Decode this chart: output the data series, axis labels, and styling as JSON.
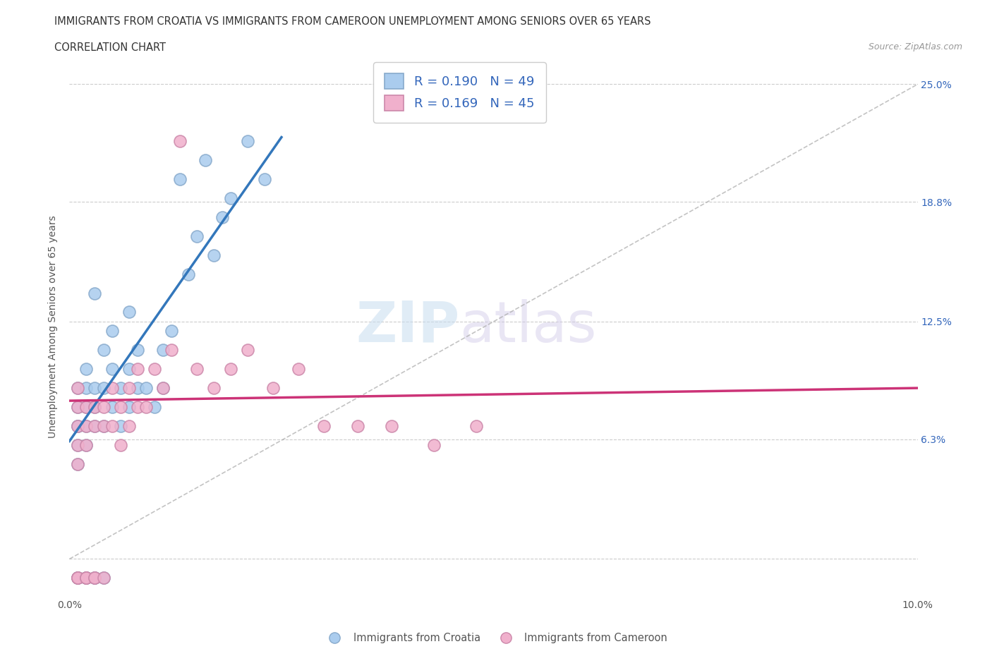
{
  "title_line1": "IMMIGRANTS FROM CROATIA VS IMMIGRANTS FROM CAMEROON UNEMPLOYMENT AMONG SENIORS OVER 65 YEARS",
  "title_line2": "CORRELATION CHART",
  "source_text": "Source: ZipAtlas.com",
  "ylabel": "Unemployment Among Seniors over 65 years",
  "watermark_zip": "ZIP",
  "watermark_atlas": "atlas",
  "xlim": [
    0.0,
    0.1
  ],
  "ylim": [
    -0.02,
    0.265
  ],
  "croatia_color": "#aaccee",
  "cameroon_color": "#f0b0cc",
  "croatia_edge": "#88aacc",
  "cameroon_edge": "#cc88aa",
  "trendline_croatia_color": "#3377bb",
  "trendline_cameroon_color": "#cc3377",
  "diagonal_color": "#aaaaaa",
  "legend_text_color": "#3366bb",
  "R_croatia": 0.19,
  "N_croatia": 49,
  "R_cameroon": 0.169,
  "N_cameroon": 45,
  "croatia_x": [
    0.001,
    0.001,
    0.001,
    0.001,
    0.001,
    0.001,
    0.001,
    0.001,
    0.002,
    0.002,
    0.002,
    0.002,
    0.002,
    0.002,
    0.002,
    0.003,
    0.003,
    0.003,
    0.003,
    0.003,
    0.003,
    0.004,
    0.004,
    0.004,
    0.004,
    0.005,
    0.005,
    0.005,
    0.006,
    0.006,
    0.007,
    0.007,
    0.007,
    0.008,
    0.008,
    0.009,
    0.01,
    0.011,
    0.011,
    0.012,
    0.013,
    0.014,
    0.015,
    0.016,
    0.017,
    0.018,
    0.019,
    0.021,
    0.023
  ],
  "croatia_y": [
    0.05,
    0.06,
    0.07,
    0.07,
    0.08,
    0.09,
    -0.01,
    -0.01,
    0.06,
    0.07,
    0.08,
    0.09,
    0.1,
    -0.01,
    -0.01,
    0.07,
    0.08,
    0.09,
    0.14,
    -0.01,
    -0.01,
    0.07,
    0.09,
    0.11,
    -0.01,
    0.08,
    0.1,
    0.12,
    0.07,
    0.09,
    0.08,
    0.1,
    0.13,
    0.09,
    0.11,
    0.09,
    0.08,
    0.09,
    0.11,
    0.12,
    0.2,
    0.15,
    0.17,
    0.21,
    0.16,
    0.18,
    0.19,
    0.22,
    0.2
  ],
  "cameroon_x": [
    0.001,
    0.001,
    0.001,
    0.001,
    0.001,
    0.001,
    0.001,
    0.001,
    0.002,
    0.002,
    0.002,
    0.002,
    0.002,
    0.002,
    0.003,
    0.003,
    0.003,
    0.003,
    0.004,
    0.004,
    0.004,
    0.005,
    0.005,
    0.006,
    0.006,
    0.007,
    0.007,
    0.008,
    0.008,
    0.009,
    0.01,
    0.011,
    0.012,
    0.013,
    0.015,
    0.017,
    0.019,
    0.021,
    0.024,
    0.027,
    0.03,
    0.034,
    0.038,
    0.043,
    0.048
  ],
  "cameroon_y": [
    0.05,
    0.06,
    0.07,
    0.08,
    0.09,
    -0.01,
    -0.01,
    -0.01,
    0.06,
    0.07,
    0.08,
    -0.01,
    -0.01,
    -0.01,
    0.07,
    0.08,
    -0.01,
    -0.01,
    0.07,
    0.08,
    -0.01,
    0.07,
    0.09,
    0.06,
    0.08,
    0.07,
    0.09,
    0.08,
    0.1,
    0.08,
    0.1,
    0.09,
    0.11,
    0.22,
    0.1,
    0.09,
    0.1,
    0.11,
    0.09,
    0.1,
    0.07,
    0.07,
    0.07,
    0.06,
    0.07
  ]
}
